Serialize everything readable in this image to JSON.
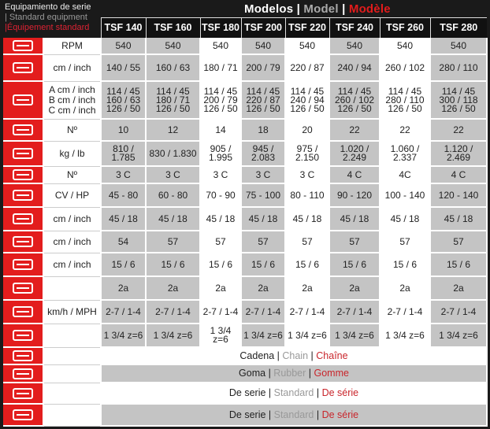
{
  "legend": {
    "es": "Equipamiento de serie",
    "en": "| Standard equipment",
    "fr": "|Équipement standard"
  },
  "title": {
    "es": "Modelos",
    "en": "Model",
    "fr": "Modèle",
    "sep": " | "
  },
  "models": [
    "TSF 140",
    "TSF 160",
    "TSF 180",
    "TSF 200",
    "TSF 220",
    "TSF 240",
    "TSF 260",
    "TSF 280"
  ],
  "rows": [
    {
      "icon": "pto-gearbox-icon",
      "label": "RPM",
      "values": [
        "540",
        "540",
        "540",
        "540",
        "540",
        "540",
        "540",
        "540"
      ]
    },
    {
      "icon": "working-width-icon",
      "label": "cm / inch",
      "values": [
        "140 / 55",
        "160 / 63",
        "180 / 71",
        "200 / 79",
        "220 / 87",
        "240 / 94",
        "260 / 102",
        "280 / 110"
      ]
    },
    {
      "icon": "dimensions-icon",
      "label": "A cm / inch\nB cm / inch\nC cm / inch",
      "values": [
        "114 / 45\n160 / 63\n126 / 50",
        "114 / 45\n180 / 71\n126 / 50",
        "114 / 45\n200 / 79\n126 / 50",
        "114 / 45\n220 / 87\n126 / 50",
        "114 / 45\n240 / 94\n126 / 50",
        "114 / 45\n260 / 102\n126 / 50",
        "114 / 45\n280 / 110\n126 / 50",
        "114 / 45\n300 / 118\n126 / 50"
      ]
    },
    {
      "icon": "tine-icon",
      "label": "Nº",
      "values": [
        "10",
        "12",
        "14",
        "18",
        "20",
        "22",
        "22",
        "22"
      ]
    },
    {
      "icon": "weight-icon",
      "label": "kg / lb",
      "values": [
        "810 /\n1.785",
        "830 / 1.830",
        "905 /\n1.995",
        "945 /\n2.083",
        "975 /\n2.150",
        "1.020 /\n2.249",
        "1.060 /\n2.337",
        "1.120 / 2.469"
      ]
    },
    {
      "icon": "belt-icon",
      "label": "Nº",
      "values": [
        "3 C",
        "3 C",
        "3 C",
        "3 C",
        "3 C",
        "4 C",
        "4C",
        "4 C"
      ]
    },
    {
      "icon": "tractor-hp-icon",
      "label": "CV / HP",
      "values": [
        "45 - 80",
        "60 - 80",
        "70 - 90",
        "75 - 100",
        "80 - 110",
        "90 - 120",
        "100 - 140",
        "120 - 140"
      ]
    },
    {
      "icon": "rotor-depth-icon",
      "label": "cm / inch",
      "values": [
        "45 / 18",
        "45 / 18",
        "45 / 18",
        "45 / 18",
        "45 / 18",
        "45 / 18",
        "45 / 18",
        "45 / 18"
      ]
    },
    {
      "icon": "rotor-diameter-icon",
      "label": "cm / inch",
      "values": [
        "54",
        "57",
        "57",
        "57",
        "57",
        "57",
        "57",
        "57"
      ]
    },
    {
      "icon": "wheel-icon",
      "label": "cm / inch",
      "values": [
        "15 / 6",
        "15 / 6",
        "15 / 6",
        "15 / 6",
        "15 / 6",
        "15 / 6",
        "15 / 6",
        "15 / 6"
      ]
    },
    {
      "icon": "hitch-category-icon",
      "label": "",
      "values": [
        "2a",
        "2a",
        "2a",
        "2a",
        "2a",
        "2a",
        "2a",
        "2a"
      ]
    },
    {
      "icon": "tractor-speed-icon",
      "label": "km/h / MPH",
      "values": [
        "2-7 / 1-4",
        "2-7 / 1-4",
        "2-7 / 1-4",
        "2-7 / 1-4",
        "2-7 / 1-4",
        "2-7 / 1-4",
        "2-7 / 1-4",
        "2-7 / 1-4"
      ]
    },
    {
      "icon": "pto-shaft-icon",
      "label": "",
      "values": [
        "1 3/4 z=6",
        "1 3/4 z=6",
        "1 3/4\nz=6",
        "1 3/4 z=6",
        "1 3/4 z=6",
        "1 3/4 z=6",
        "1 3/4 z=6",
        "1 3/4 z=6"
      ]
    }
  ],
  "span_rows": [
    {
      "icon": "chain-icon",
      "es": "Cadena",
      "en": "Chain",
      "fr": "Chaîne"
    },
    {
      "icon": "rubber-flap-icon",
      "es": "Goma",
      "en": "Rubber",
      "fr": "Gomme"
    },
    {
      "icon": "roller-icon",
      "es": "De serie",
      "en": "Standard",
      "fr": "De série"
    },
    {
      "icon": "gear-protection-icon",
      "es": "De serie",
      "en": "Standard",
      "fr": "De série"
    }
  ],
  "colors": {
    "accent": "#e31d1d",
    "header": "#111111",
    "shaded": "#c4c4c4"
  }
}
